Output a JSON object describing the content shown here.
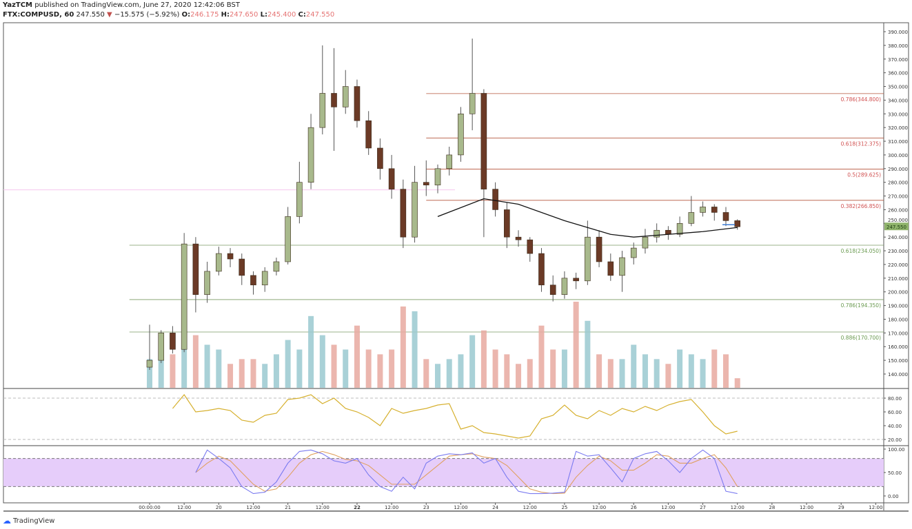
{
  "header": {
    "author": "YazTCM",
    "published": "published on TradingView.com, June 27, 2020 12:42:06 BST",
    "symbol": "FTX:COMPUSD, 60",
    "last": "247.550",
    "change": "−15.575 (−5.92%)",
    "o_label": "O:",
    "o": "246.175",
    "h_label": "H:",
    "h": "247.650",
    "l_label": "L:",
    "l": "245.400",
    "c_label": "C:",
    "c": "247.550"
  },
  "footer": {
    "logo_text": "TradingView"
  },
  "colors": {
    "up": "#a8b98c",
    "down": "#6b3a26",
    "fib_red": "#b4533a",
    "fib_green": "#7a9a63",
    "ma": "#111111",
    "rsi": "#d6b02e",
    "stoch_k": "#7b7bf0",
    "stoch_d": "#e0a060",
    "stoch_band": "#e6cdfa",
    "price_tag": "#8fb36b",
    "vol_up": "#9ac9d0",
    "vol_down": "#e7a9a0"
  },
  "chart_data": {
    "type": "candlestick",
    "price_axis": {
      "ticks": [
        "140.000",
        "150.000",
        "160.000",
        "170.000",
        "180.000",
        "190.000",
        "200.000",
        "210.000",
        "220.000",
        "230.000",
        "240.000",
        "250.000",
        "260.000",
        "270.000",
        "280.000",
        "290.000",
        "300.000",
        "310.000",
        "320.000",
        "330.000",
        "340.000",
        "350.000",
        "360.000",
        "370.000",
        "380.000",
        "390.000"
      ],
      "range": [
        140,
        390
      ]
    },
    "last_price_label": "247.550",
    "time_axis": [
      "00:00:00",
      "12:00",
      "20",
      "12:00",
      "21",
      "12:00",
      "22",
      "12:00",
      "23",
      "12:00",
      "24",
      "12:00",
      "25",
      "12:00",
      "26",
      "12:00",
      "27",
      "12:00",
      "28",
      "12:00",
      "29",
      "12:00"
    ],
    "candle_columns": [
      "time",
      "open",
      "high",
      "low",
      "close",
      "volume"
    ],
    "candles": [
      [
        "19 00:00",
        145,
        176,
        143,
        150,
        30
      ],
      [
        "19 04:00",
        150,
        172,
        148,
        170,
        40
      ],
      [
        "19 08:00",
        170,
        175,
        155,
        158,
        35
      ],
      [
        "19 12:00",
        158,
        243,
        156,
        235,
        70
      ],
      [
        "19 16:00",
        235,
        240,
        185,
        198,
        55
      ],
      [
        "19 20:00",
        198,
        222,
        192,
        215,
        45
      ],
      [
        "20 00:00",
        215,
        233,
        212,
        228,
        40
      ],
      [
        "20 04:00",
        228,
        232,
        218,
        224,
        25
      ],
      [
        "20 08:00",
        224,
        228,
        205,
        212,
        30
      ],
      [
        "20 12:00",
        212,
        215,
        198,
        205,
        30
      ],
      [
        "20 16:00",
        205,
        218,
        200,
        215,
        25
      ],
      [
        "20 20:00",
        215,
        225,
        212,
        222,
        35
      ],
      [
        "21 00:00",
        222,
        262,
        220,
        255,
        50
      ],
      [
        "21 04:00",
        255,
        295,
        250,
        280,
        40
      ],
      [
        "21 08:00",
        280,
        330,
        275,
        320,
        75
      ],
      [
        "21 12:00",
        320,
        380,
        315,
        345,
        55
      ],
      [
        "21 16:00",
        345,
        378,
        303,
        335,
        45
      ],
      [
        "21 20:00",
        335,
        362,
        330,
        350,
        40
      ],
      [
        "22 00:00",
        350,
        355,
        320,
        325,
        65
      ],
      [
        "22 04:00",
        325,
        332,
        300,
        305,
        40
      ],
      [
        "22 08:00",
        305,
        312,
        282,
        290,
        35
      ],
      [
        "22 12:00",
        290,
        300,
        268,
        275,
        40
      ],
      [
        "22 16:00",
        275,
        282,
        232,
        240,
        85
      ],
      [
        "22 20:00",
        240,
        292,
        236,
        280,
        80
      ],
      [
        "23 00:00",
        280,
        296,
        270,
        278,
        30
      ],
      [
        "23 04:00",
        278,
        293,
        272,
        290,
        25
      ],
      [
        "23 08:00",
        290,
        306,
        285,
        300,
        30
      ],
      [
        "23 12:00",
        300,
        335,
        295,
        330,
        35
      ],
      [
        "23 16:00",
        330,
        385,
        318,
        345,
        55
      ],
      [
        "23 20:00",
        345,
        348,
        240,
        275,
        60
      ],
      [
        "24 00:00",
        275,
        280,
        255,
        260,
        40
      ],
      [
        "24 04:00",
        260,
        265,
        232,
        240,
        35
      ],
      [
        "24 08:00",
        240,
        245,
        233,
        238,
        25
      ],
      [
        "24 12:00",
        238,
        240,
        222,
        228,
        30
      ],
      [
        "24 16:00",
        228,
        232,
        200,
        205,
        65
      ],
      [
        "24 20:00",
        205,
        212,
        193,
        198,
        40
      ],
      [
        "25 00:00",
        198,
        215,
        195,
        210,
        40
      ],
      [
        "25 04:00",
        210,
        214,
        202,
        208,
        90
      ],
      [
        "25 08:00",
        208,
        252,
        205,
        240,
        70
      ],
      [
        "25 12:00",
        240,
        245,
        218,
        222,
        35
      ],
      [
        "25 16:00",
        222,
        228,
        208,
        212,
        30
      ],
      [
        "25 20:00",
        212,
        230,
        200,
        225,
        30
      ],
      [
        "26 00:00",
        225,
        236,
        220,
        232,
        45
      ],
      [
        "26 04:00",
        232,
        246,
        228,
        240,
        35
      ],
      [
        "26 08:00",
        240,
        250,
        236,
        245,
        30
      ],
      [
        "26 12:00",
        245,
        248,
        238,
        242,
        25
      ],
      [
        "26 16:00",
        242,
        255,
        240,
        250,
        40
      ],
      [
        "26 20:00",
        250,
        270,
        248,
        258,
        35
      ],
      [
        "27 00:00",
        258,
        266,
        255,
        262,
        30
      ],
      [
        "27 04:00",
        262,
        264,
        252,
        258,
        40
      ],
      [
        "27 08:00",
        258,
        262,
        248,
        252,
        35
      ],
      [
        "27 12:00",
        252,
        253,
        245.4,
        247.55,
        10
      ]
    ],
    "moving_average": [
      [
        "23 04:00",
        255
      ],
      [
        "23 20:00",
        268
      ],
      [
        "24 08:00",
        264
      ],
      [
        "25 00:00",
        252
      ],
      [
        "25 16:00",
        242
      ],
      [
        "26 00:00",
        240
      ],
      [
        "26 12:00",
        242
      ],
      [
        "27 00:00",
        244
      ],
      [
        "27 12:00",
        247
      ]
    ],
    "fib_levels": [
      {
        "label": "0.786(344.800)",
        "price": 344.8,
        "color": "red",
        "from": "23 00:00"
      },
      {
        "label": "0.618(312.375)",
        "price": 312.375,
        "color": "red",
        "from": "23 00:00"
      },
      {
        "label": "0.5(289.625)",
        "price": 289.625,
        "color": "red",
        "from": "23 00:00"
      },
      {
        "label": "0.382(266.850)",
        "price": 266.85,
        "color": "red",
        "from": "23 00:00"
      },
      {
        "label": "0.618(234.050)",
        "price": 234.05,
        "color": "green",
        "from": "18 17:00"
      },
      {
        "label": "0.786(194.350)",
        "price": 194.35,
        "color": "green",
        "from": "18 17:00"
      },
      {
        "label": "0.886(170.700)",
        "price": 170.7,
        "color": "green",
        "from": "18 17:00"
      }
    ],
    "rsi": {
      "ticks": [
        "80.00",
        "60.00",
        "40.00",
        "20.00"
      ],
      "bands": [
        80,
        20
      ],
      "values": [
        null,
        null,
        65,
        85,
        60,
        62,
        65,
        62,
        48,
        45,
        55,
        58,
        78,
        80,
        85,
        72,
        80,
        65,
        60,
        52,
        40,
        65,
        58,
        62,
        65,
        70,
        72,
        35,
        40,
        30,
        28,
        25,
        22,
        25,
        50,
        55,
        70,
        55,
        50,
        62,
        55,
        65,
        60,
        68,
        62,
        70,
        75,
        78,
        60,
        40,
        28,
        32
      ]
    },
    "stoch": {
      "ticks": [
        "100.00",
        "50.00",
        "0.00"
      ],
      "bands": [
        80,
        20
      ],
      "k": [
        null,
        null,
        null,
        null,
        50,
        98,
        80,
        60,
        20,
        5,
        8,
        30,
        70,
        95,
        98,
        90,
        75,
        70,
        80,
        45,
        20,
        10,
        40,
        15,
        70,
        85,
        90,
        88,
        92,
        70,
        80,
        40,
        10,
        5,
        5,
        6,
        8,
        95,
        85,
        88,
        60,
        30,
        80,
        90,
        95,
        75,
        50,
        80,
        98,
        80,
        10,
        5
      ],
      "d": [
        null,
        null,
        null,
        null,
        50,
        70,
        85,
        75,
        50,
        25,
        10,
        15,
        40,
        70,
        88,
        95,
        88,
        78,
        75,
        65,
        45,
        25,
        25,
        25,
        45,
        65,
        85,
        88,
        90,
        83,
        80,
        65,
        40,
        15,
        8,
        5,
        6,
        40,
        65,
        85,
        75,
        55,
        55,
        70,
        88,
        85,
        70,
        70,
        80,
        88,
        60,
        20
      ]
    }
  }
}
